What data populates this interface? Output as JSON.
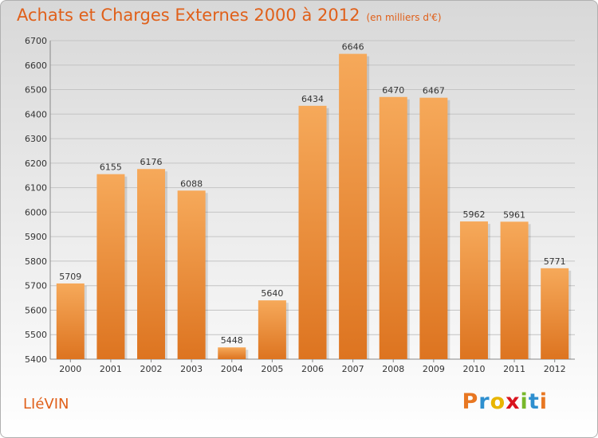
{
  "chart_data": {
    "type": "bar",
    "title": "Achats et Charges Externes 2000 à 2012",
    "subtitle": "(en milliers d'€)",
    "categories": [
      "2000",
      "2001",
      "2002",
      "2003",
      "2004",
      "2005",
      "2006",
      "2007",
      "2008",
      "2009",
      "2010",
      "2011",
      "2012"
    ],
    "values": [
      5709,
      6155,
      6176,
      6088,
      5448,
      5640,
      6434,
      6646,
      6470,
      6467,
      5962,
      5961,
      5771
    ],
    "ylim": [
      5400,
      6700
    ],
    "yticks": [
      5400,
      5500,
      5600,
      5700,
      5800,
      5900,
      6000,
      6100,
      6200,
      6300,
      6400,
      6500,
      6600,
      6700
    ],
    "grid": true,
    "bar_color_top": "#f6a95a",
    "bar_color_bottom": "#dd7420",
    "label_color": "#333333"
  },
  "footer": {
    "commune": "LIéVIN",
    "brand_letters": [
      "P",
      "r",
      "o",
      "x",
      "i",
      "t",
      "i"
    ],
    "brand_colors": [
      "#e87722",
      "#2e8fcf",
      "#e8b500",
      "#d9141e",
      "#78b82a",
      "#2e8fcf",
      "#e87722"
    ]
  }
}
